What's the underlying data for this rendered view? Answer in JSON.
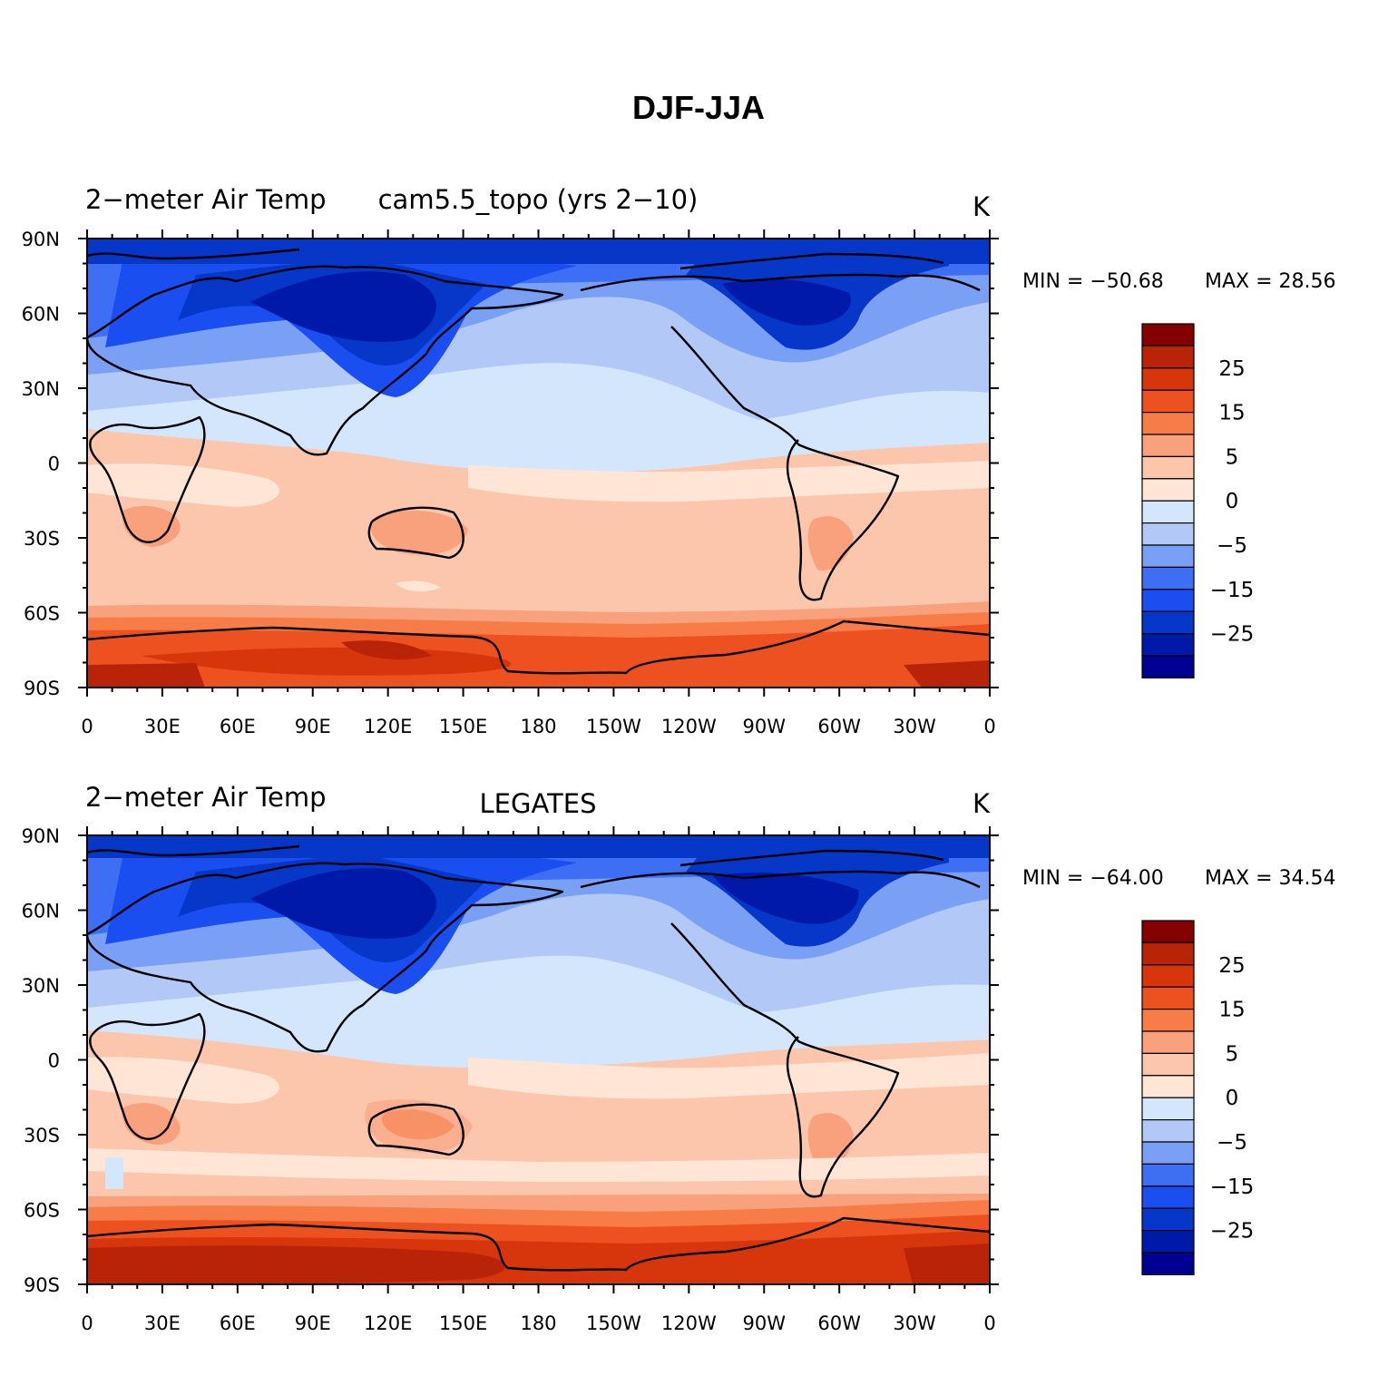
{
  "title": "DJF-JJA",
  "colors": {
    "levels": [
      "#000093",
      "#0019a8",
      "#0637c9",
      "#1a4ef0",
      "#3d6ef4",
      "#79a0f5",
      "#b2c8f7",
      "#d4e6fc",
      "#fee5d6",
      "#fcc6ad",
      "#f9a07c",
      "#f77c48",
      "#ee5120",
      "#d7350c",
      "#b92408",
      "#850000"
    ],
    "coastline": "#000000"
  },
  "colorbar": {
    "labels": [
      "25",
      "15",
      "5",
      "0",
      "−5",
      "−15",
      "−25"
    ]
  },
  "axes": {
    "lat_labels": [
      "90N",
      "60N",
      "30N",
      "0",
      "30S",
      "60S",
      "90S"
    ],
    "lon_labels": [
      "0",
      "30E",
      "60E",
      "90E",
      "120E",
      "150E",
      "180",
      "150W",
      "120W",
      "90W",
      "60W",
      "30W",
      "0"
    ]
  },
  "panels": [
    {
      "left_title": "2−meter Air Temp",
      "center_title": "cam5.5_topo (yrs 2−10)",
      "right_title": "K",
      "min_label": "MIN = −50.68",
      "max_label": "MAX =   28.56"
    },
    {
      "left_title": "2−meter Air Temp",
      "center_title": "LEGATES",
      "right_title": "K",
      "min_label": "MIN = −64.00",
      "max_label": "MAX =   34.54"
    }
  ]
}
